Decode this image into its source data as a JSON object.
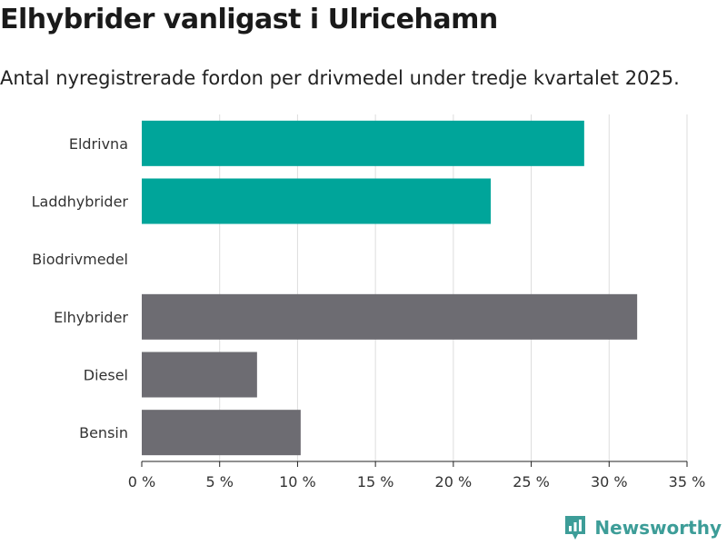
{
  "title": "Elhybrider vanligast i Ulricehamn",
  "subtitle": "Antal nyregistrerade fordon per drivmedel under tredje kvartalet 2025.",
  "brand": {
    "name": "Newsworthy"
  },
  "colors": {
    "highlight": "#00a59a",
    "neutral": "#6d6c72",
    "grid": "#dddddd",
    "brand": "#3d9d98"
  },
  "chart_data": {
    "type": "bar",
    "orientation": "horizontal",
    "title": "Elhybrider vanligast i Ulricehamn",
    "subtitle": "Antal nyregistrerade fordon per drivmedel under tredje kvartalet 2025.",
    "xlabel": "",
    "ylabel": "",
    "xlim": [
      0,
      35
    ],
    "x_ticks": [
      0,
      5,
      10,
      15,
      20,
      25,
      30,
      35
    ],
    "tick_suffix": " %",
    "grid": true,
    "categories": [
      "Eldrivna",
      "Laddhybrider",
      "Biodrivmedel",
      "Elhybrider",
      "Diesel",
      "Bensin"
    ],
    "values": [
      28.4,
      22.4,
      0,
      31.8,
      7.4,
      10.2
    ],
    "bar_colors": [
      "highlight",
      "highlight",
      "highlight",
      "neutral",
      "neutral",
      "neutral"
    ]
  }
}
